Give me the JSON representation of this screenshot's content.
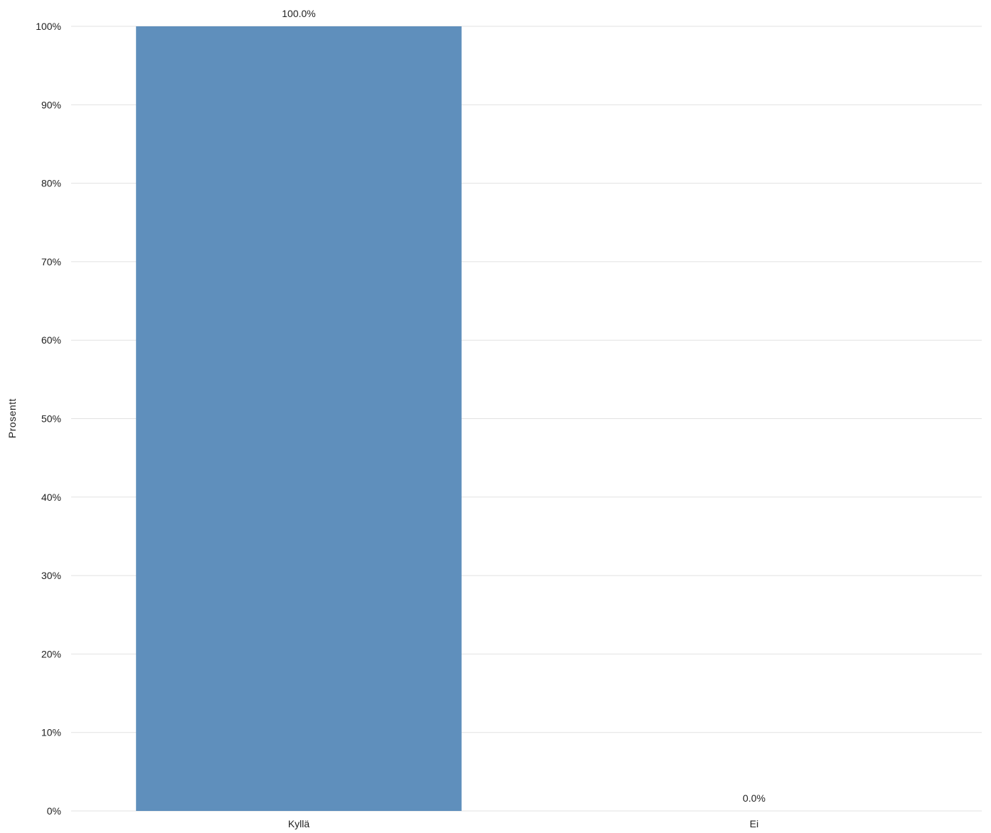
{
  "chart_data": {
    "type": "bar",
    "categories": [
      "Kyllä",
      "Ei"
    ],
    "values": [
      100.0,
      0.0
    ],
    "data_labels": [
      "100.0%",
      "0.0%"
    ],
    "title": "",
    "xlabel": "",
    "ylabel": "Prosentt",
    "ylim": [
      0,
      100
    ],
    "y_ticks": [
      0,
      10,
      20,
      30,
      40,
      50,
      60,
      70,
      80,
      90,
      100
    ],
    "y_tick_labels": [
      "0%",
      "10%",
      "20%",
      "30%",
      "40%",
      "50%",
      "60%",
      "70%",
      "80%",
      "90%",
      "100%"
    ],
    "grid": true,
    "legend": "none",
    "bar_color": "#5f8fbc"
  }
}
